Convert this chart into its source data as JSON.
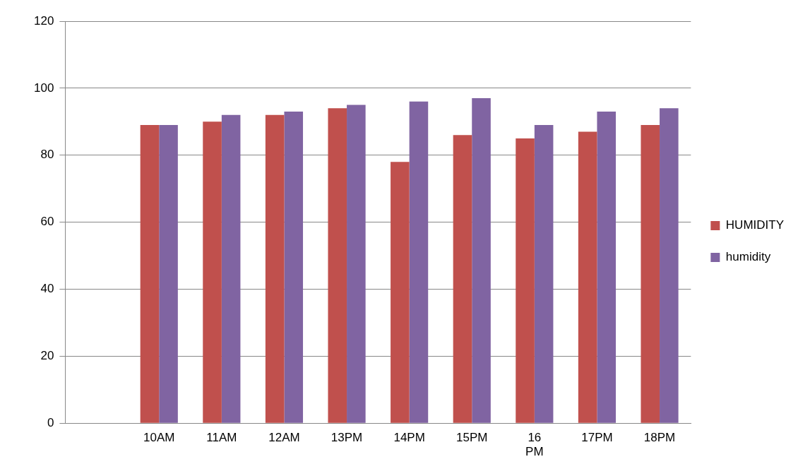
{
  "chart_data": {
    "type": "bar",
    "categories": [
      null,
      "10AM",
      "11AM",
      "12AM",
      "13PM",
      "14PM",
      "15PM",
      "16 PM",
      "17PM",
      "18PM"
    ],
    "series": [
      {
        "name": "HUMIDITY",
        "color": "#c0504d",
        "values": [
          null,
          89,
          90,
          92,
          94,
          78,
          86,
          85,
          87,
          89
        ]
      },
      {
        "name": "humidity",
        "color": "#8064a2",
        "values": [
          null,
          89,
          92,
          93,
          95,
          96,
          97,
          89,
          93,
          94
        ]
      }
    ],
    "ylim": [
      0,
      120
    ],
    "yticks": [
      0,
      20,
      40,
      60,
      80,
      100,
      120
    ],
    "grid": "y",
    "legend": "right"
  }
}
